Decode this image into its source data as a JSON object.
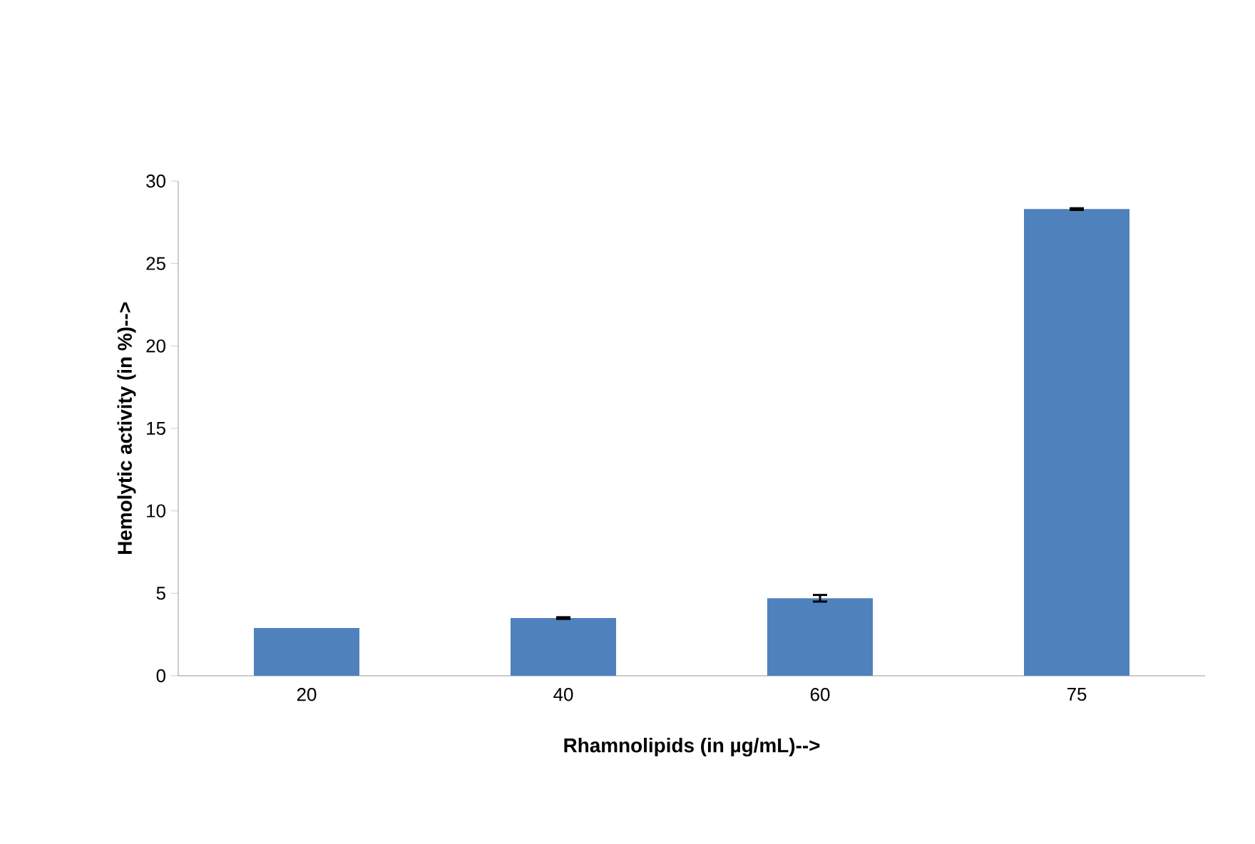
{
  "chart_data": {
    "type": "bar",
    "xlabel": "Rhamnolipids (in µg/mL)-->",
    "ylabel": "Hemolytic activity (in %)-->",
    "categories": [
      "20",
      "40",
      "60",
      "75"
    ],
    "values": [
      2.9,
      3.5,
      4.7,
      28.3
    ],
    "errors": [
      null,
      0.05,
      0.2,
      0.05
    ],
    "color": "#4f81bd",
    "ylim": [
      0,
      30
    ],
    "yticks": [
      0,
      5,
      10,
      15,
      20,
      25,
      30
    ],
    "grid": false
  }
}
